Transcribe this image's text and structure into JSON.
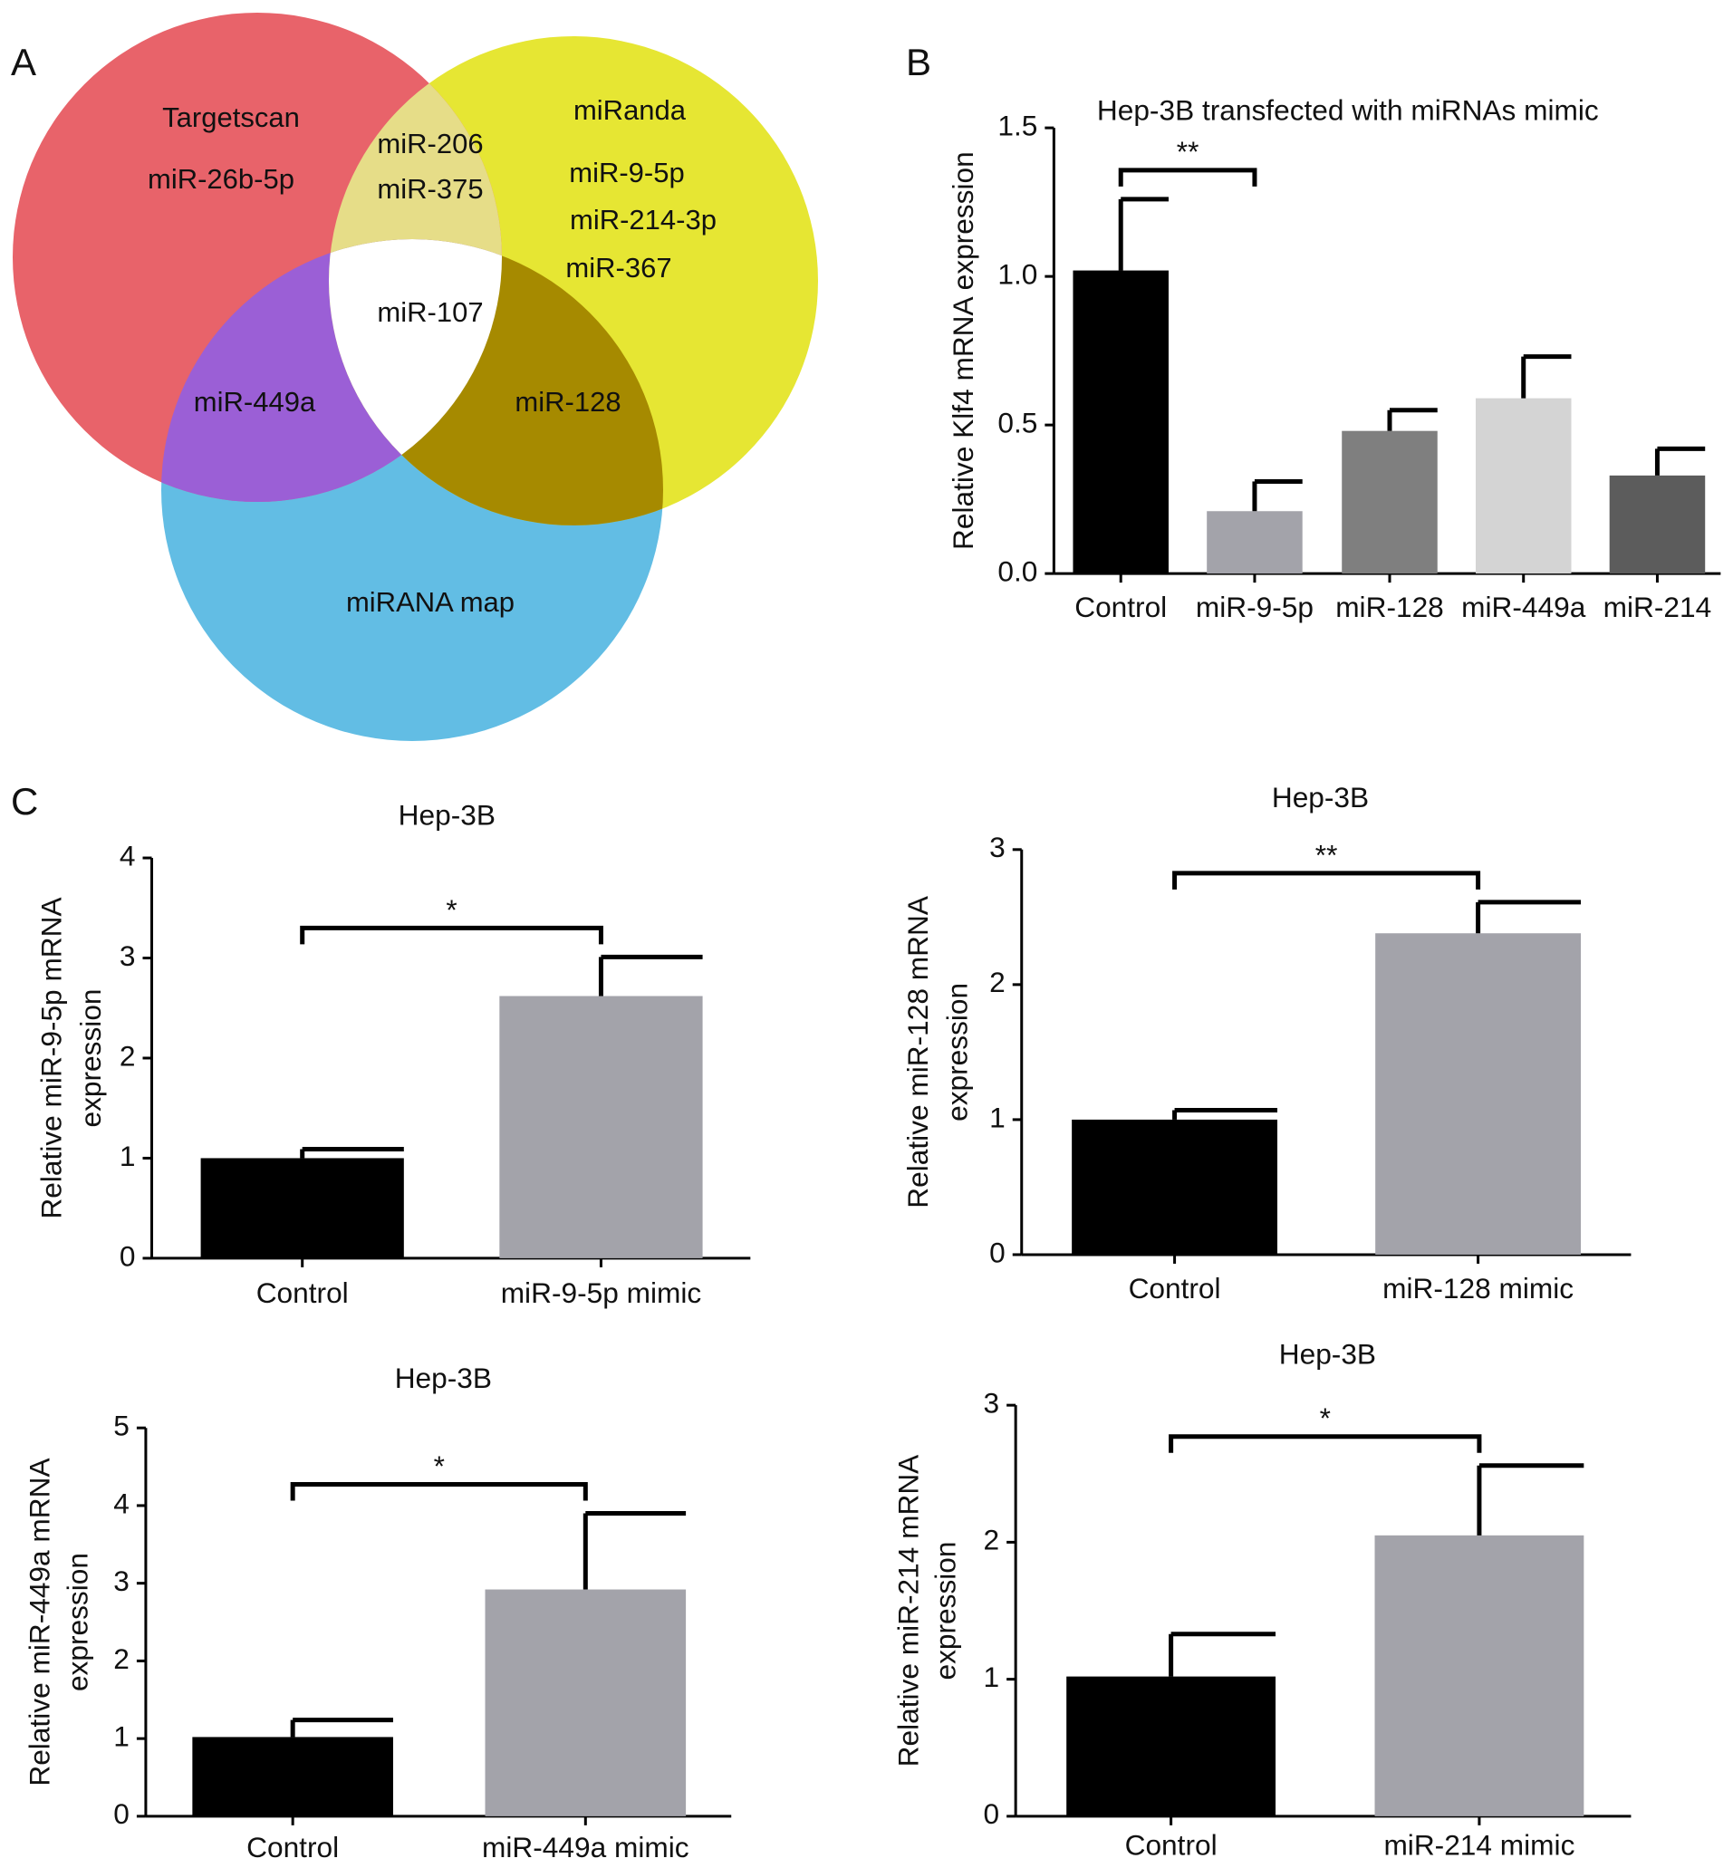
{
  "panel_labels": [
    "A",
    "B",
    "C"
  ],
  "venn": {
    "sets": [
      {
        "name": "Targetscan",
        "items": [
          "miR-26b-5p"
        ],
        "color": "#e8636a"
      },
      {
        "name": "miRanda",
        "items": [
          "miR-9-5p",
          "miR-214-3p",
          "miR-367"
        ],
        "color": "#e6e633"
      },
      {
        "name": "miRANA map",
        "items": [],
        "color": "#62bde4"
      }
    ],
    "targetscan_miranda": [
      "miR-206",
      "miR-375"
    ],
    "all_three": [
      "miR-107"
    ],
    "targetscan_mirana_map": [
      "miR-449a"
    ],
    "miranda_mirana_map": [
      "miR-128"
    ]
  },
  "chart_data": [
    {
      "type": "bar",
      "title": "Hep-3B transfected with miRNAs mimic",
      "ylabel": [
        "Relative Klf4 mRNA expression"
      ],
      "categories": [
        "Control",
        "miR-9-5p",
        "miR-128",
        "miR-449a",
        "miR-214"
      ],
      "values": [
        1.02,
        0.21,
        0.48,
        0.59,
        0.33
      ],
      "errors": [
        0.24,
        0.1,
        0.07,
        0.14,
        0.09
      ],
      "colors": [
        "#000000",
        "#a3a3aa",
        "#7f7f7f",
        "#d4d4d4",
        "#5c5c5c"
      ],
      "ylim": [
        0,
        1.5
      ],
      "yticks": [
        {
          "value": 0,
          "label": "0.0"
        },
        0.5,
        {
          "value": 1,
          "label": "1.0"
        },
        1.5
      ],
      "annotations": [
        {
          "text": "**",
          "between": [
            "Control",
            "miR-9-5p"
          ]
        }
      ]
    },
    {
      "type": "bar",
      "title": "Hep-3B",
      "ylabel": [
        "Relative miR-9-5p mRNA",
        "expression"
      ],
      "categories": [
        "Control",
        "miR-9-5p mimic"
      ],
      "values": [
        1.0,
        2.62
      ],
      "errors": [
        0.09,
        0.39
      ],
      "colors": [
        "#000000",
        "#a3a3aa"
      ],
      "ylim": [
        0,
        4
      ],
      "yticks": [
        0,
        1,
        2,
        3,
        4
      ],
      "annotations": [
        {
          "text": "*",
          "between": [
            "Control",
            "miR-9-5p mimic"
          ]
        }
      ]
    },
    {
      "type": "bar",
      "title": "Hep-3B",
      "ylabel": [
        "Relative miR-128 mRNA",
        "expression"
      ],
      "categories": [
        "Control",
        "miR-128 mimic"
      ],
      "values": [
        1.0,
        2.38
      ],
      "errors": [
        0.07,
        0.23
      ],
      "colors": [
        "#000000",
        "#a3a3aa"
      ],
      "ylim": [
        0,
        3
      ],
      "yticks": [
        0,
        1,
        2,
        3
      ],
      "annotations": [
        {
          "text": "**",
          "between": [
            "Control",
            "miR-128 mimic"
          ]
        }
      ]
    },
    {
      "type": "bar",
      "title": "Hep-3B",
      "ylabel": [
        "Relative miR-449a mRNA",
        "expression"
      ],
      "categories": [
        "Control",
        "miR-449a mimic"
      ],
      "values": [
        1.02,
        2.92
      ],
      "errors": [
        0.22,
        0.98
      ],
      "colors": [
        "#000000",
        "#a3a3aa"
      ],
      "ylim": [
        0,
        5
      ],
      "yticks": [
        0,
        1,
        2,
        3,
        4,
        5
      ],
      "annotations": [
        {
          "text": "*",
          "between": [
            "Control",
            "miR-449a mimic"
          ]
        }
      ]
    },
    {
      "type": "bar",
      "title": "Hep-3B",
      "ylabel": [
        "Relative miR-214 mRNA",
        "expression"
      ],
      "categories": [
        "Control",
        "miR-214 mimic"
      ],
      "values": [
        1.02,
        2.05
      ],
      "errors": [
        0.31,
        0.51
      ],
      "colors": [
        "#000000",
        "#a3a3aa"
      ],
      "ylim": [
        0,
        3
      ],
      "yticks": [
        0,
        1,
        2,
        3
      ],
      "annotations": [
        {
          "text": "*",
          "between": [
            "Control",
            "miR-214 mimic"
          ]
        }
      ]
    }
  ]
}
